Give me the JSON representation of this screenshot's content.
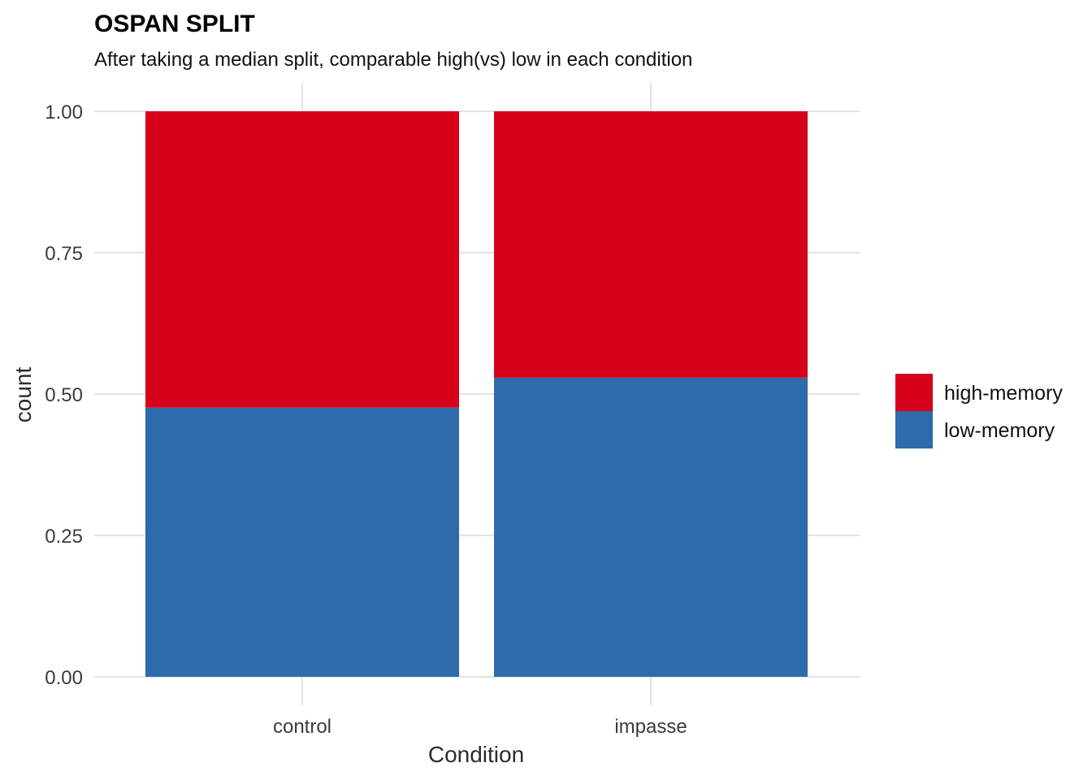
{
  "chart_data": {
    "type": "bar",
    "stacked": true,
    "title": "OSPAN SPLIT",
    "subtitle": "After taking a median split, comparable high(vs) low in each condition",
    "xlabel": "Condition",
    "ylabel": "count",
    "categories": [
      "control",
      "impasse"
    ],
    "ylim": [
      0,
      1
    ],
    "yticks": [
      "0.00",
      "0.25",
      "0.50",
      "0.75",
      "1.00"
    ],
    "ytick_values": [
      0,
      0.25,
      0.5,
      0.75,
      1.0
    ],
    "grid": true,
    "legend_position": "right",
    "series": [
      {
        "name": "low-memory",
        "color": "#2E6BAA",
        "values": [
          0.476,
          0.529
        ]
      },
      {
        "name": "high-memory",
        "color": "#D7001A",
        "values": [
          0.524,
          0.471
        ]
      }
    ],
    "legend_order": [
      "high-memory",
      "low-memory"
    ]
  }
}
